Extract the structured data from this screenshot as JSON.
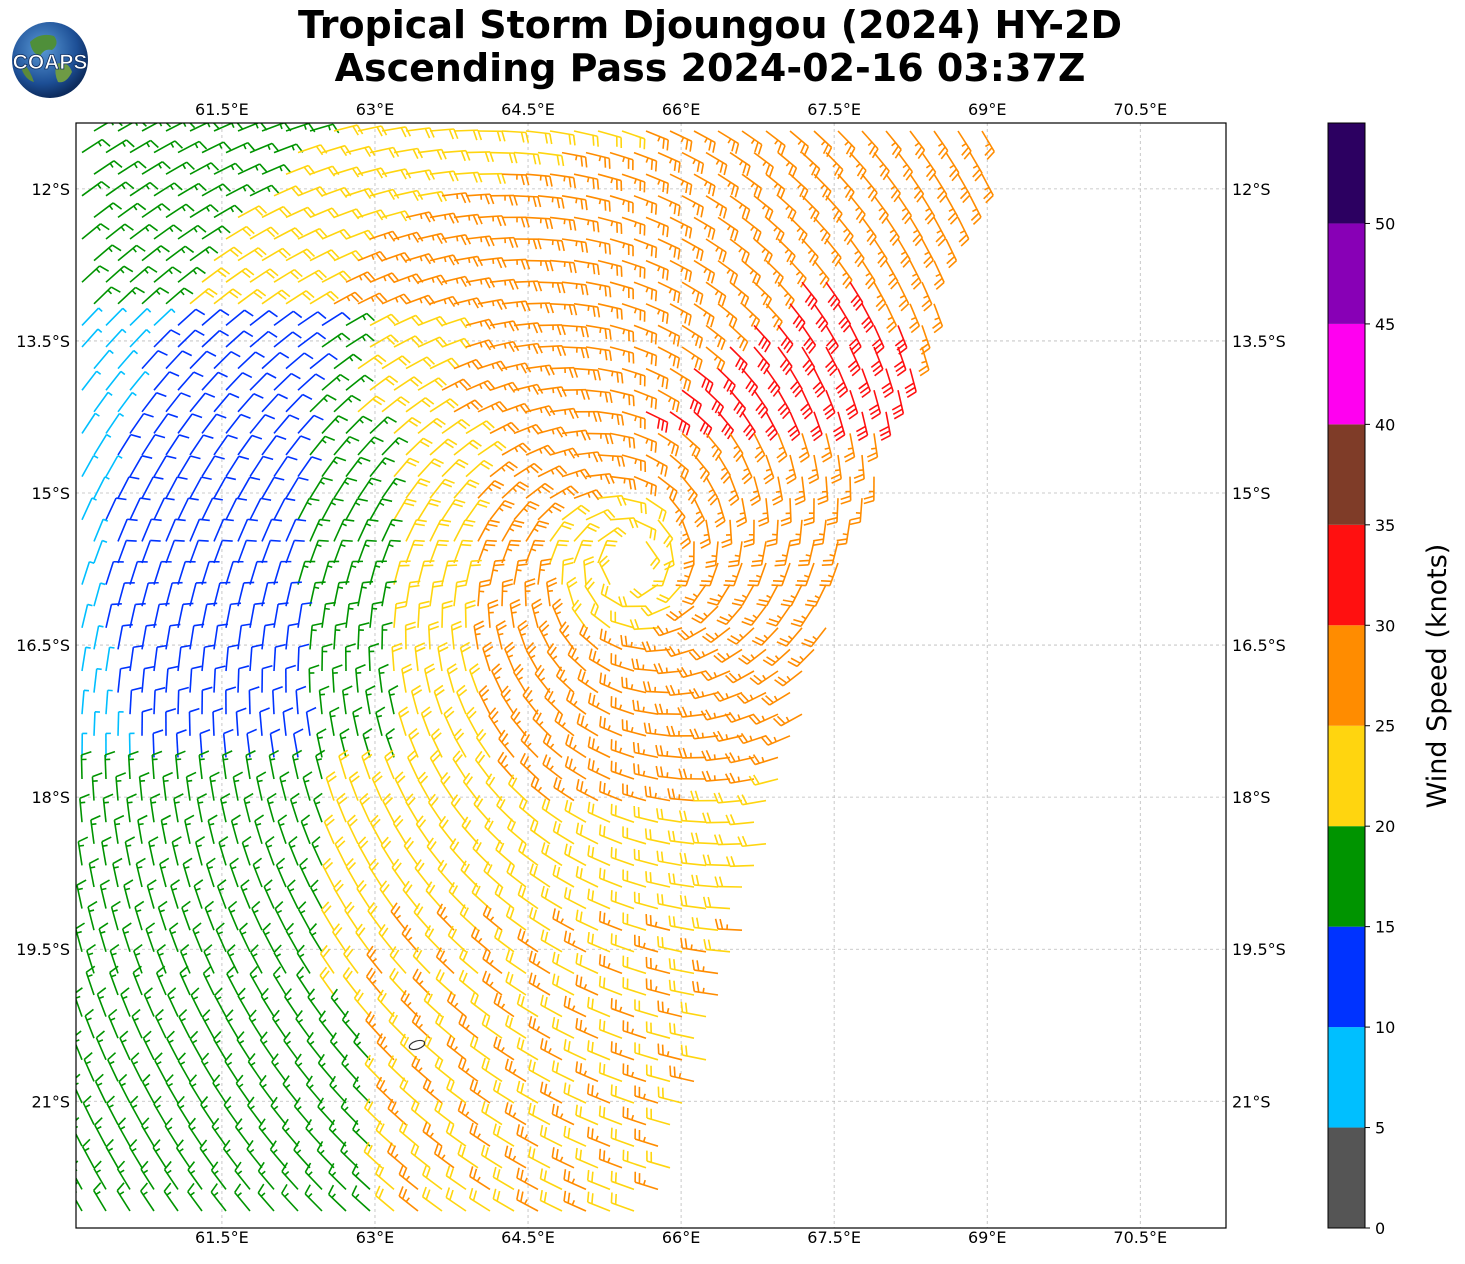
{
  "title": {
    "line1": "Tropical Storm Djoungou (2024) HY-2D",
    "line2": "Ascending Pass 2024-02-16 03:37Z"
  },
  "logo": {
    "text": "COAPS",
    "icon": "globe-icon"
  },
  "map": {
    "lon_range": [
      60.07,
      71.34
    ],
    "lat_range": [
      -11.35,
      -22.25
    ],
    "lon_ticks": [
      "61.5°E",
      "63°E",
      "64.5°E",
      "66°E",
      "67.5°E",
      "69°E",
      "70.5°E"
    ],
    "lon_tick_values": [
      61.5,
      63,
      64.5,
      66,
      67.5,
      69,
      70.5
    ],
    "lat_ticks": [
      "12°S",
      "13.5°S",
      "15°S",
      "16.5°S",
      "18°S",
      "19.5°S",
      "21°S"
    ],
    "lat_tick_values": [
      -12,
      -13.5,
      -15,
      -16.5,
      -18,
      -19.5,
      -21
    ],
    "gridlines": true,
    "storm_center": {
      "lon": 65.5,
      "lat": -15.7
    },
    "wind_barbs": "dense field of wind barbs colored by speed; cyclonic circulation centered near 65.5°E, 15.7°S"
  },
  "colorbar": {
    "label": "Wind Speed (knots)",
    "ticks": [
      "0",
      "5",
      "10",
      "15",
      "20",
      "25",
      "30",
      "35",
      "40",
      "45",
      "50"
    ],
    "range": [
      0,
      55
    ],
    "bins": [
      {
        "min": 0,
        "max": 5,
        "color": "#555555"
      },
      {
        "min": 5,
        "max": 10,
        "color": "#00bfff"
      },
      {
        "min": 10,
        "max": 15,
        "color": "#0033ff"
      },
      {
        "min": 15,
        "max": 20,
        "color": "#009400"
      },
      {
        "min": 20,
        "max": 25,
        "color": "#ffd50f"
      },
      {
        "min": 25,
        "max": 30,
        "color": "#ff8c00"
      },
      {
        "min": 30,
        "max": 35,
        "color": "#ff1010"
      },
      {
        "min": 35,
        "max": 40,
        "color": "#7f3c28"
      },
      {
        "min": 40,
        "max": 45,
        "color": "#ff00f0"
      },
      {
        "min": 45,
        "max": 50,
        "color": "#8800b6"
      },
      {
        "min": 50,
        "max": 55,
        "color": "#2c0061"
      }
    ]
  }
}
